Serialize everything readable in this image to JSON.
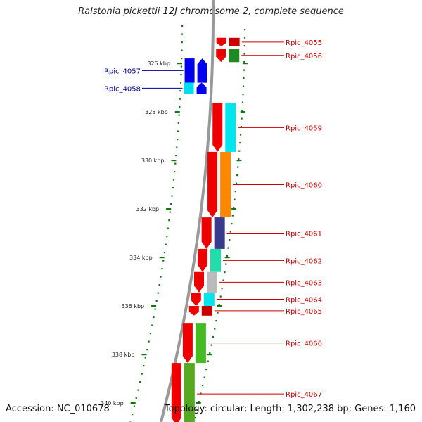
{
  "title": "Ralstonia pickettii 12J chromosome 2, complete sequence",
  "footer": {
    "accession": "Accession: NC_010678",
    "summary": "Topology: circular; Length: 1,302,238 bp; Genes: 1,160"
  },
  "colors": {
    "backbone": "#999999",
    "reverse_gene": "#0000ee",
    "forward_gene": "#ee0000",
    "tick": "#117711",
    "label_reverse": "#000099",
    "label_forward": "#cc0000"
  },
  "ticks": [
    "326 kbp",
    "328 kbp",
    "330 kbp",
    "332 kbp",
    "334 kbp",
    "336 kbp",
    "338 kbp",
    "340 kbp"
  ],
  "genes": [
    {
      "label": "Rpic_4055",
      "strand": "forward",
      "start_kbp": 324.95,
      "end_kbp": 325.3,
      "cog": "#cc0000"
    },
    {
      "label": "Rpic_4056",
      "strand": "forward",
      "start_kbp": 325.4,
      "end_kbp": 325.95,
      "cog": "#228822"
    },
    {
      "label": "Rpic_4057",
      "strand": "reverse",
      "start_kbp": 325.8,
      "end_kbp": 326.8,
      "cog": "#0000ee"
    },
    {
      "label": "Rpic_4058",
      "strand": "reverse",
      "start_kbp": 326.8,
      "end_kbp": 327.25,
      "cog": "#00ddee"
    },
    {
      "label": "Rpic_4059",
      "strand": "forward",
      "start_kbp": 327.65,
      "end_kbp": 329.65,
      "cog": "#00e5ee"
    },
    {
      "label": "Rpic_4060",
      "strand": "forward",
      "start_kbp": 329.65,
      "end_kbp": 332.35,
      "cog": "#ff8800"
    },
    {
      "label": "Rpic_4061",
      "strand": "forward",
      "start_kbp": 332.35,
      "end_kbp": 333.65,
      "cog": "#3a3a8a"
    },
    {
      "label": "Rpic_4062",
      "strand": "forward",
      "start_kbp": 333.65,
      "end_kbp": 334.6,
      "cog": "#22ddaa"
    },
    {
      "label": "Rpic_4063",
      "strand": "forward",
      "start_kbp": 334.6,
      "end_kbp": 335.45,
      "cog": "#bbbbbb"
    },
    {
      "label": "Rpic_4064",
      "strand": "forward",
      "start_kbp": 335.45,
      "end_kbp": 336.0,
      "cog": "#00e5ee"
    },
    {
      "label": "Rpic_4065",
      "strand": "forward",
      "start_kbp": 336.0,
      "end_kbp": 336.4,
      "cog": "#cc0000"
    },
    {
      "label": "Rpic_4066",
      "strand": "forward",
      "start_kbp": 336.7,
      "end_kbp": 338.35,
      "cog": "#44bb22"
    },
    {
      "label": "Rpic_4067",
      "strand": "forward",
      "start_kbp": 338.35,
      "end_kbp": 340.9,
      "cog": "#55aa22"
    }
  ]
}
